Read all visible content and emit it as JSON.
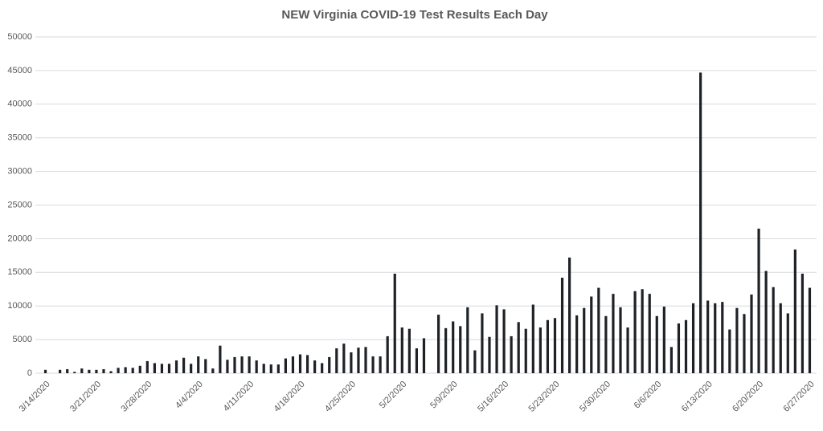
{
  "chart_data": {
    "type": "bar",
    "title": "NEW Virginia COVID-19 Test Results Each Day",
    "categories": [
      "3/14/2020",
      null,
      null,
      null,
      null,
      null,
      null,
      "3/21/2020",
      null,
      null,
      null,
      null,
      null,
      null,
      "3/28/2020",
      null,
      null,
      null,
      null,
      null,
      null,
      "4/4/2020",
      null,
      null,
      null,
      null,
      null,
      null,
      "4/11/2020",
      null,
      null,
      null,
      null,
      null,
      null,
      "4/18/2020",
      null,
      null,
      null,
      null,
      null,
      null,
      "4/25/2020",
      null,
      null,
      null,
      null,
      null,
      null,
      "5/2/2020",
      null,
      null,
      null,
      null,
      null,
      null,
      "5/9/2020",
      null,
      null,
      null,
      null,
      null,
      null,
      "5/16/2020",
      null,
      null,
      null,
      null,
      null,
      null,
      "5/23/2020",
      null,
      null,
      null,
      null,
      null,
      null,
      "5/30/2020",
      null,
      null,
      null,
      null,
      null,
      null,
      "6/6/2020",
      null,
      null,
      null,
      null,
      null,
      null,
      "6/13/2020",
      null,
      null,
      null,
      null,
      null,
      null,
      "6/20/2020",
      null,
      null,
      null,
      null,
      null,
      null,
      "6/27/2020"
    ],
    "values": [
      500,
      0,
      500,
      600,
      200,
      700,
      500,
      500,
      600,
      300,
      800,
      900,
      800,
      1100,
      1800,
      1500,
      1400,
      1400,
      1900,
      2300,
      1400,
      2500,
      2100,
      700,
      4100,
      2000,
      2400,
      2500,
      2500,
      1900,
      1400,
      1300,
      1300,
      2200,
      2500,
      2800,
      2700,
      1900,
      1500,
      2400,
      3700,
      4400,
      3100,
      3800,
      3900,
      2500,
      2500,
      5500,
      14800,
      6800,
      6600,
      3700,
      5200,
      0,
      8700,
      6700,
      7700,
      7000,
      9800,
      3400,
      8900,
      5400,
      10100,
      9500,
      5500,
      7600,
      6600,
      10200,
      6800,
      7900,
      8200,
      14200,
      17200,
      8600,
      9700,
      11400,
      12700,
      8500,
      11800,
      9800,
      6800,
      12200,
      12500,
      11800,
      8500,
      9900,
      3900,
      7400,
      7900,
      10400,
      44700,
      10800,
      10400,
      10600,
      6500,
      9700,
      8800,
      11700,
      21500,
      15200,
      12800,
      10400,
      8900,
      18400,
      14800,
      12700
    ],
    "color": "#1e2227",
    "ylim": [
      0,
      50000
    ],
    "yticks": [
      0,
      5000,
      10000,
      15000,
      20000,
      25000,
      30000,
      35000,
      40000,
      45000,
      50000
    ],
    "grid": true
  }
}
